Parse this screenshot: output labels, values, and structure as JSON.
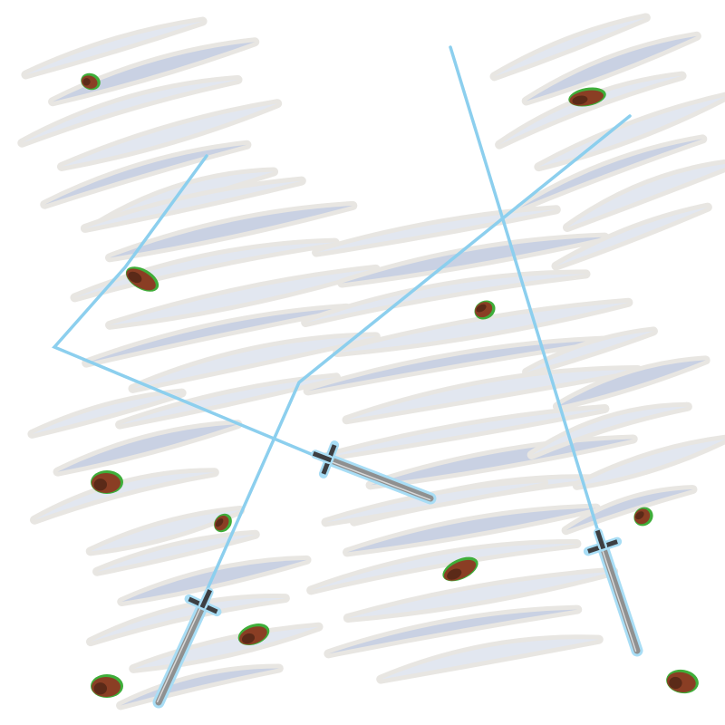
{
  "scene": {
    "background": "#ffffff",
    "colors": {
      "wind_dark": "#c9d1e3",
      "wind_light": "#e2e7f0",
      "wind_outline": "#e8e6e2",
      "trail": "#8ccfee",
      "sword_blade": "#8f9090",
      "sword_edge": "#d8d8d8",
      "sword_glow": "#a8ddf5",
      "sword_hilt": "#3d3f42",
      "rock": "#8a3e24",
      "rock_dark": "#5b2a18",
      "moss": "#3fae3a"
    },
    "wind_clouds": [
      {
        "name": "wind-gust-top-left"
      },
      {
        "name": "wind-gust-center-left"
      },
      {
        "name": "wind-gust-left"
      },
      {
        "name": "wind-gust-bottom-left"
      },
      {
        "name": "wind-gust-center"
      },
      {
        "name": "wind-gust-top-right"
      },
      {
        "name": "wind-gust-right"
      },
      {
        "name": "wind-gust-bottom-center"
      }
    ],
    "trails": [
      {
        "name": "sword-trail-left"
      },
      {
        "name": "sword-trail-bottom"
      },
      {
        "name": "sword-trail-right"
      }
    ],
    "swords": [
      {
        "name": "sword-left"
      },
      {
        "name": "sword-bottom"
      },
      {
        "name": "sword-right"
      }
    ],
    "rocks": [
      {
        "name": "rock-debris"
      },
      {
        "name": "rock-debris"
      },
      {
        "name": "rock-debris"
      },
      {
        "name": "rock-debris"
      },
      {
        "name": "rock-debris"
      },
      {
        "name": "rock-debris"
      },
      {
        "name": "rock-debris"
      },
      {
        "name": "rock-debris"
      },
      {
        "name": "rock-debris"
      },
      {
        "name": "rock-debris"
      },
      {
        "name": "rock-debris"
      }
    ]
  }
}
